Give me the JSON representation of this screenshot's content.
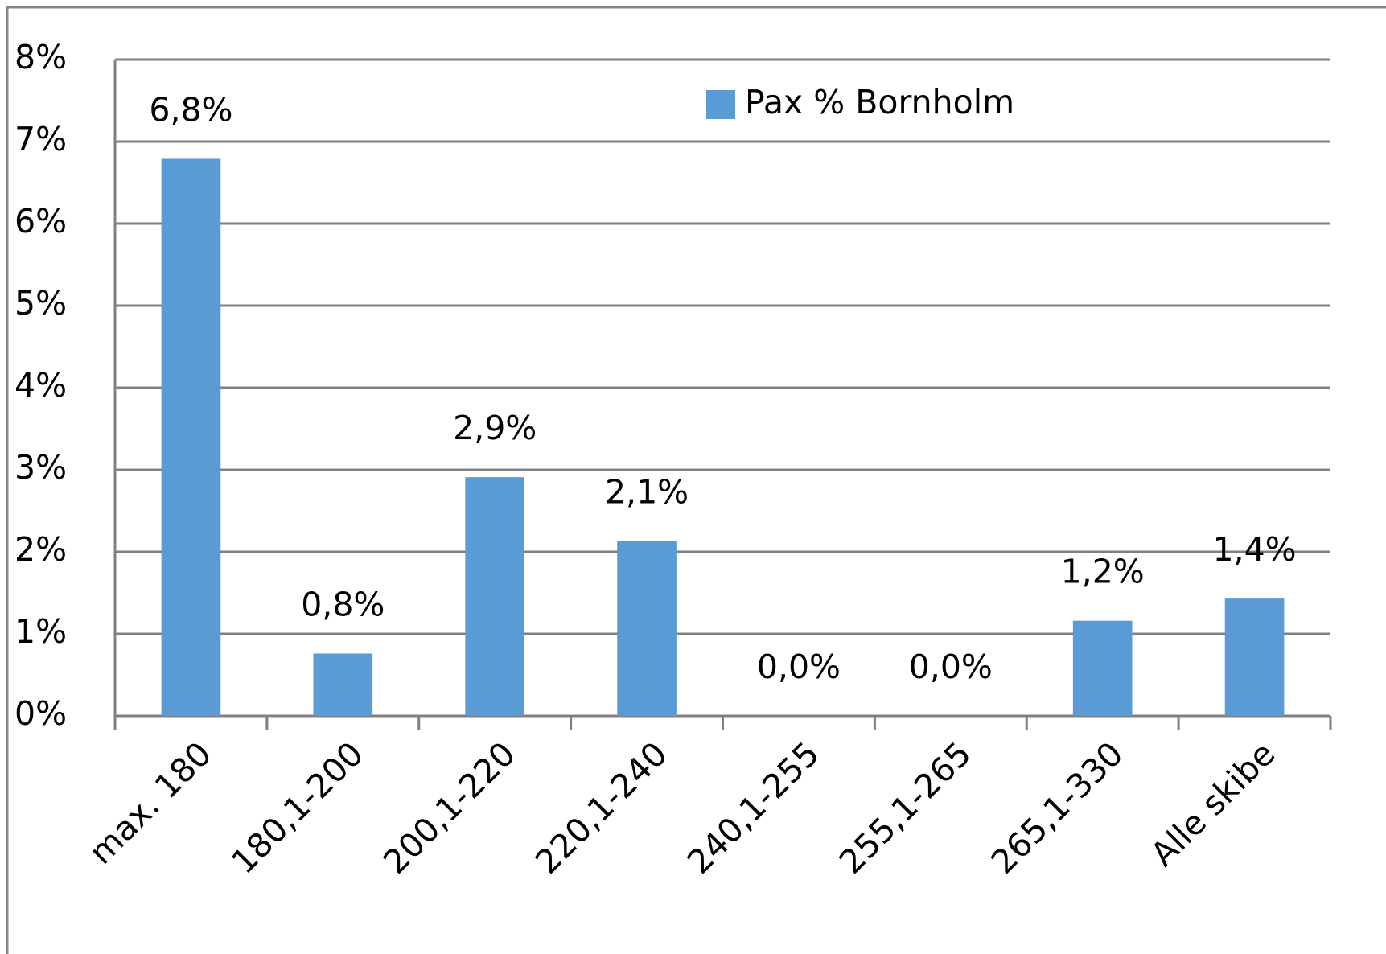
{
  "chart_data": {
    "type": "bar",
    "categories": [
      "max. 180",
      "180,1-200",
      "200,1-220",
      "220,1-240",
      "240,1-255",
      "255,1-265",
      "265,1-330",
      "Alle skibe"
    ],
    "series": [
      {
        "name": "Pax % Bornholm",
        "color": "#5b9bd5",
        "values": [
          6.79,
          0.76,
          2.91,
          2.13,
          0,
          0,
          1.16,
          1.43
        ],
        "value_labels": [
          "6,8%",
          "0,8%",
          "2,9%",
          "2,1%",
          "0,0%",
          "0,0%",
          "1,2%",
          "1,4%"
        ]
      }
    ],
    "ylim": [
      0,
      8
    ],
    "yticks": [
      {
        "value": 0,
        "label": "0%"
      },
      {
        "value": 1,
        "label": "1%"
      },
      {
        "value": 2,
        "label": "2%"
      },
      {
        "value": 3,
        "label": "3%"
      },
      {
        "value": 4,
        "label": "4%"
      },
      {
        "value": 5,
        "label": "5%"
      },
      {
        "value": 6,
        "label": "6%"
      },
      {
        "value": 7,
        "label": "7%"
      },
      {
        "value": 8,
        "label": "8%"
      }
    ],
    "grid": true,
    "legend": "top"
  }
}
